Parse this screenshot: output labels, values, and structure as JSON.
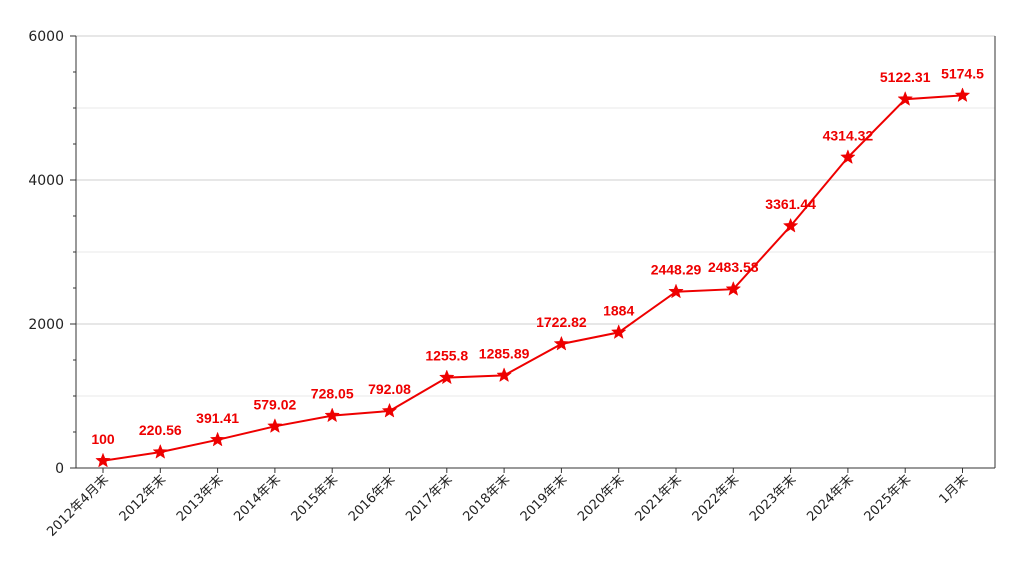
{
  "chart_data": {
    "type": "line",
    "categories": [
      "2012年4月末",
      "2012年末",
      "2013年末",
      "2014年末",
      "2015年末",
      "2016年末",
      "2017年末",
      "2018年末",
      "2019年末",
      "2020年末",
      "2021年末",
      "2022年末",
      "2023年末",
      "2024年末",
      "2025年末",
      "1月末"
    ],
    "values": [
      100,
      220.56,
      391.41,
      579.02,
      728.05,
      792.08,
      1255.8,
      1285.89,
      1722.82,
      1884,
      2448.29,
      2483.58,
      3361.44,
      4314.32,
      5122.31,
      5174.5
    ],
    "value_labels": [
      "100",
      "220.56",
      "391.41",
      "579.02",
      "728.05",
      "792.08",
      "1255.8",
      "1285.89",
      "1722.82",
      "1884",
      "2448.29",
      "2483.58",
      "3361.44",
      "4314.32",
      "5122.31",
      "5174.5"
    ],
    "ylim": [
      0,
      6000
    ],
    "yticks": [
      0,
      2000,
      4000,
      6000
    ],
    "ytick_labels": [
      "0",
      "2000",
      "4000",
      "6000"
    ],
    "title": "",
    "xlabel": "",
    "ylabel": "",
    "grid": true,
    "marker": "star",
    "color": "#ee0000"
  }
}
